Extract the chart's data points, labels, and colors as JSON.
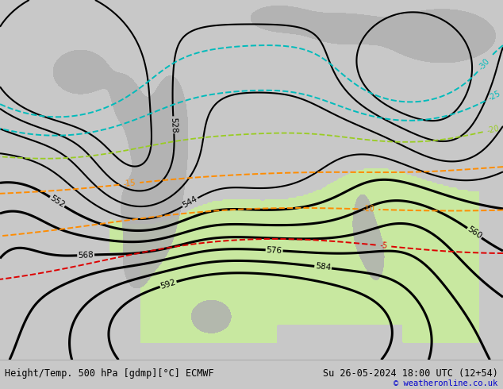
{
  "title_left": "Height/Temp. 500 hPa [gdmp][°C] ECMWF",
  "title_right": "Su 26-05-2024 18:00 UTC (12+54)",
  "copyright": "© weatheronline.co.uk",
  "bg_color": "#c8c8c8",
  "green_fill_color": "#c8e8a0",
  "height_contour_color": "#000000",
  "temp_orange_color": "#ff8c00",
  "temp_cyan_color": "#00bbbb",
  "temp_red_color": "#dd0000",
  "temp_green_color": "#88cc00",
  "mountain_color": "#b0b0b0",
  "figsize": [
    6.34,
    4.9
  ],
  "dpi": 100
}
